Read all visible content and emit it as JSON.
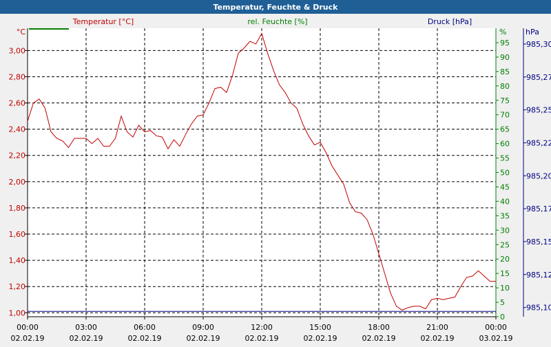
{
  "chart_data": {
    "type": "line",
    "title": "Temperatur, Feuchte & Druck",
    "colors": {
      "header_bg": "#1f5f96",
      "header_text": "#ffffff",
      "plot_bg": "#ffffff",
      "temp": "#c00000",
      "humidity": "#008000",
      "pressure": "#000080",
      "grid": "#000000"
    },
    "grid": true,
    "x_axis": {
      "range": [
        "2019-02-02 00:00",
        "2019-02-03 00:00"
      ],
      "ticks": [
        {
          "time": "00:00",
          "date": "02.02.19"
        },
        {
          "time": "03:00",
          "date": "02.02.19"
        },
        {
          "time": "06:00",
          "date": "02.02.19"
        },
        {
          "time": "09:00",
          "date": "02.02.19"
        },
        {
          "time": "12:00",
          "date": "02.02.19"
        },
        {
          "time": "15:00",
          "date": "02.02.19"
        },
        {
          "time": "18:00",
          "date": "02.02.19"
        },
        {
          "time": "21:00",
          "date": "02.02.19"
        },
        {
          "time": "00:00",
          "date": "03.02.19"
        }
      ]
    },
    "axes": {
      "temperature": {
        "label": "Temperatur [°C]",
        "unit": "°C",
        "ylim": [
          0.97,
          3.17
        ],
        "ticks": [
          "1,00",
          "1,20",
          "1,40",
          "1,60",
          "1,80",
          "2,00",
          "2,20",
          "2,40",
          "2,60",
          "2,80",
          "3,00"
        ],
        "tick_values": [
          1.0,
          1.2,
          1.4,
          1.6,
          1.8,
          2.0,
          2.2,
          2.4,
          2.6,
          2.8,
          3.0
        ]
      },
      "humidity": {
        "label": "rel. Feuchte [%]",
        "unit": "%",
        "ylim": [
          0,
          100
        ],
        "ticks": [
          "0",
          "5",
          "10",
          "15",
          "20",
          "25",
          "30",
          "35",
          "40",
          "45",
          "50",
          "55",
          "60",
          "65",
          "70",
          "75",
          "80",
          "85",
          "90",
          "95"
        ],
        "tick_values": [
          0,
          5,
          10,
          15,
          20,
          25,
          30,
          35,
          40,
          45,
          50,
          55,
          60,
          65,
          70,
          75,
          80,
          85,
          90,
          95
        ]
      },
      "pressure": {
        "label": "Druck [hPa]",
        "unit": "hPa",
        "ylim": [
          985.093,
          985.312
        ],
        "ticks": [
          "985,10",
          "985,12",
          "985,15",
          "985,17",
          "985,20",
          "985,22",
          "985,25",
          "985,27",
          "985,30"
        ],
        "tick_values": [
          985.1,
          985.125,
          985.15,
          985.175,
          985.2,
          985.225,
          985.25,
          985.275,
          985.3
        ]
      }
    },
    "series": [
      {
        "name": "Temperatur [°C]",
        "axis": "temperature",
        "x_hours": [
          0,
          0.3,
          0.6,
          0.9,
          1.2,
          1.5,
          1.8,
          2.1,
          2.4,
          2.7,
          3.0,
          3.3,
          3.6,
          3.9,
          4.2,
          4.5,
          4.8,
          5.1,
          5.4,
          5.7,
          6.0,
          6.3,
          6.6,
          6.9,
          7.2,
          7.5,
          7.8,
          8.1,
          8.4,
          8.7,
          9.0,
          9.3,
          9.6,
          9.9,
          10.2,
          10.5,
          10.8,
          11.1,
          11.4,
          11.7,
          12.0,
          12.3,
          12.6,
          12.9,
          13.2,
          13.5,
          13.8,
          14.1,
          14.4,
          14.7,
          15.0,
          15.3,
          15.6,
          15.9,
          16.2,
          16.5,
          16.8,
          17.1,
          17.4,
          17.7,
          18.0,
          18.3,
          18.6,
          18.9,
          19.2,
          19.5,
          19.8,
          20.1,
          20.4,
          20.7,
          21.0,
          21.3,
          21.6,
          21.9,
          22.2,
          22.5,
          22.8,
          23.1,
          23.4,
          23.7,
          24.0
        ],
        "values": [
          2.46,
          2.6,
          2.63,
          2.56,
          2.38,
          2.33,
          2.31,
          2.26,
          2.33,
          2.33,
          2.33,
          2.29,
          2.33,
          2.27,
          2.27,
          2.33,
          2.5,
          2.38,
          2.34,
          2.43,
          2.38,
          2.39,
          2.35,
          2.34,
          2.25,
          2.32,
          2.27,
          2.36,
          2.44,
          2.5,
          2.51,
          2.6,
          2.71,
          2.72,
          2.68,
          2.81,
          2.98,
          3.02,
          3.07,
          3.05,
          3.13,
          2.98,
          2.85,
          2.74,
          2.68,
          2.6,
          2.56,
          2.44,
          2.35,
          2.28,
          2.3,
          2.22,
          2.12,
          2.05,
          1.98,
          1.84,
          1.77,
          1.76,
          1.71,
          1.6,
          1.45,
          1.3,
          1.15,
          1.05,
          1.02,
          1.04,
          1.05,
          1.05,
          1.03,
          1.1,
          1.11,
          1.1,
          1.11,
          1.12,
          1.2,
          1.27,
          1.28,
          1.32,
          1.28,
          1.24,
          1.24
        ]
      },
      {
        "name": "rel. Feuchte [%]",
        "axis": "humidity",
        "x_hours": [],
        "values": []
      },
      {
        "name": "Druck [hPa]",
        "axis": "pressure",
        "x_hours": [
          0,
          24
        ],
        "values": [
          985.097,
          985.097
        ]
      }
    ]
  }
}
